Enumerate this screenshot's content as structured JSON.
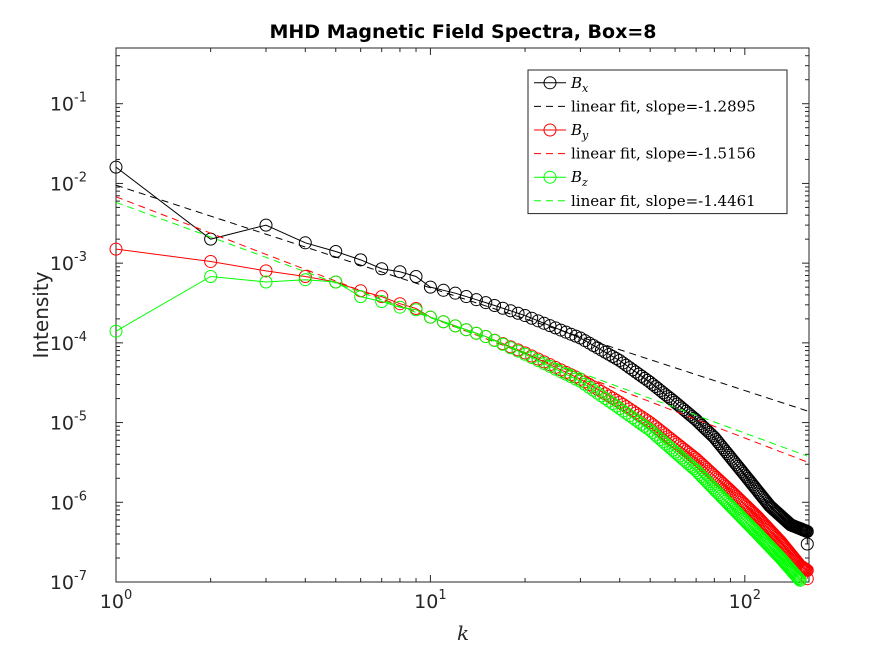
{
  "chart_data": {
    "type": "line",
    "title": "MHD Magnetic Field Spectra, Box=8",
    "xlabel": "k",
    "ylabel": "Intensity",
    "xscale": "log",
    "yscale": "log",
    "xlim": [
      1,
      160
    ],
    "ylim": [
      1e-07,
      0.5
    ],
    "grid": false,
    "legend_position": "top-right",
    "x_ticks": [
      {
        "value": 1,
        "base": "10",
        "exp": "0"
      },
      {
        "value": 10,
        "base": "10",
        "exp": "1"
      },
      {
        "value": 100,
        "base": "10",
        "exp": "2"
      }
    ],
    "y_ticks": [
      {
        "value": 0.1,
        "base": "10",
        "exp": "-1"
      },
      {
        "value": 0.01,
        "base": "10",
        "exp": "-2"
      },
      {
        "value": 0.001,
        "base": "10",
        "exp": "-3"
      },
      {
        "value": 0.0001,
        "base": "10",
        "exp": "-4"
      },
      {
        "value": 1e-05,
        "base": "10",
        "exp": "-5"
      },
      {
        "value": 1e-06,
        "base": "10",
        "exp": "-6"
      },
      {
        "value": 1e-07,
        "base": "10",
        "exp": "-7"
      }
    ],
    "series": [
      {
        "name": "B_x",
        "legend_base": "B",
        "legend_sub": "x",
        "color": "#000000",
        "style": "line-circle",
        "anchors": [
          [
            1,
            0.016
          ],
          [
            2,
            0.002
          ],
          [
            3,
            0.003
          ],
          [
            4,
            0.0018
          ],
          [
            5,
            0.0014
          ],
          [
            6,
            0.0011
          ],
          [
            7,
            0.00085
          ],
          [
            8,
            0.00078
          ],
          [
            9,
            0.00068
          ],
          [
            10,
            0.0005
          ],
          [
            12,
            0.00042
          ],
          [
            15,
            0.00032
          ],
          [
            20,
            0.00022
          ],
          [
            30,
            0.000115
          ],
          [
            40,
            6e-05
          ],
          [
            50,
            3.2e-05
          ],
          [
            60,
            1.8e-05
          ],
          [
            70,
            1.08e-05
          ],
          [
            80,
            6.5e-06
          ],
          [
            100,
            2.2e-06
          ],
          [
            120,
            9e-07
          ],
          [
            140,
            5.2e-07
          ],
          [
            158,
            4.3e-07
          ]
        ],
        "last_point": [
          158,
          3e-07
        ]
      },
      {
        "name": "linear fit, slope=-1.2895",
        "color": "#000000",
        "style": "dashed",
        "line": [
          [
            1,
            0.0095
          ],
          [
            158,
            1.4e-05
          ]
        ]
      },
      {
        "name": "B_y",
        "legend_base": "B",
        "legend_sub": "y",
        "color": "#ff0000",
        "style": "line-circle",
        "anchors": [
          [
            1,
            0.0015
          ],
          [
            2,
            0.00105
          ],
          [
            3,
            0.0008
          ],
          [
            4,
            0.00068
          ],
          [
            5,
            0.00058
          ],
          [
            6,
            0.00045
          ],
          [
            7,
            0.00038
          ],
          [
            8,
            0.00031
          ],
          [
            9,
            0.00027
          ],
          [
            10,
            0.00021
          ],
          [
            15,
            0.00012
          ],
          [
            20,
            7.5e-05
          ],
          [
            30,
            3.5e-05
          ],
          [
            40,
            1.8e-05
          ],
          [
            50,
            1e-05
          ],
          [
            70,
            3.5e-06
          ],
          [
            90,
            1.4e-06
          ],
          [
            110,
            6.5e-07
          ],
          [
            130,
            3.2e-07
          ],
          [
            150,
            1.6e-07
          ],
          [
            158,
            1.4e-07
          ]
        ],
        "last_point": [
          158,
          1.1e-07
        ]
      },
      {
        "name": "linear fit, slope=-1.5156",
        "color": "#ff0000",
        "style": "dashed",
        "line": [
          [
            1,
            0.0068
          ],
          [
            158,
            3.2e-06
          ]
        ]
      },
      {
        "name": "B_z",
        "legend_base": "B",
        "legend_sub": "z",
        "color": "#00ff00",
        "style": "line-circle",
        "anchors": [
          [
            1,
            0.00014
          ],
          [
            2,
            0.00068
          ],
          [
            3,
            0.00058
          ],
          [
            4,
            0.00062
          ],
          [
            5,
            0.00058
          ],
          [
            6,
            0.00038
          ],
          [
            7,
            0.00033
          ],
          [
            8,
            0.00028
          ],
          [
            9,
            0.00026
          ],
          [
            10,
            0.00021
          ],
          [
            15,
            0.00012
          ],
          [
            20,
            7.2e-05
          ],
          [
            30,
            3.3e-05
          ],
          [
            40,
            1.5e-05
          ],
          [
            50,
            8e-06
          ],
          [
            70,
            2.5e-06
          ],
          [
            90,
            9e-07
          ],
          [
            110,
            4e-07
          ],
          [
            130,
            2e-07
          ],
          [
            150,
            1.05e-07
          ]
        ]
      },
      {
        "name": "linear fit, slope=-1.4461",
        "color": "#00ff00",
        "style": "dashed",
        "line": [
          [
            1,
            0.0058
          ],
          [
            158,
            3.8e-06
          ]
        ]
      }
    ]
  }
}
